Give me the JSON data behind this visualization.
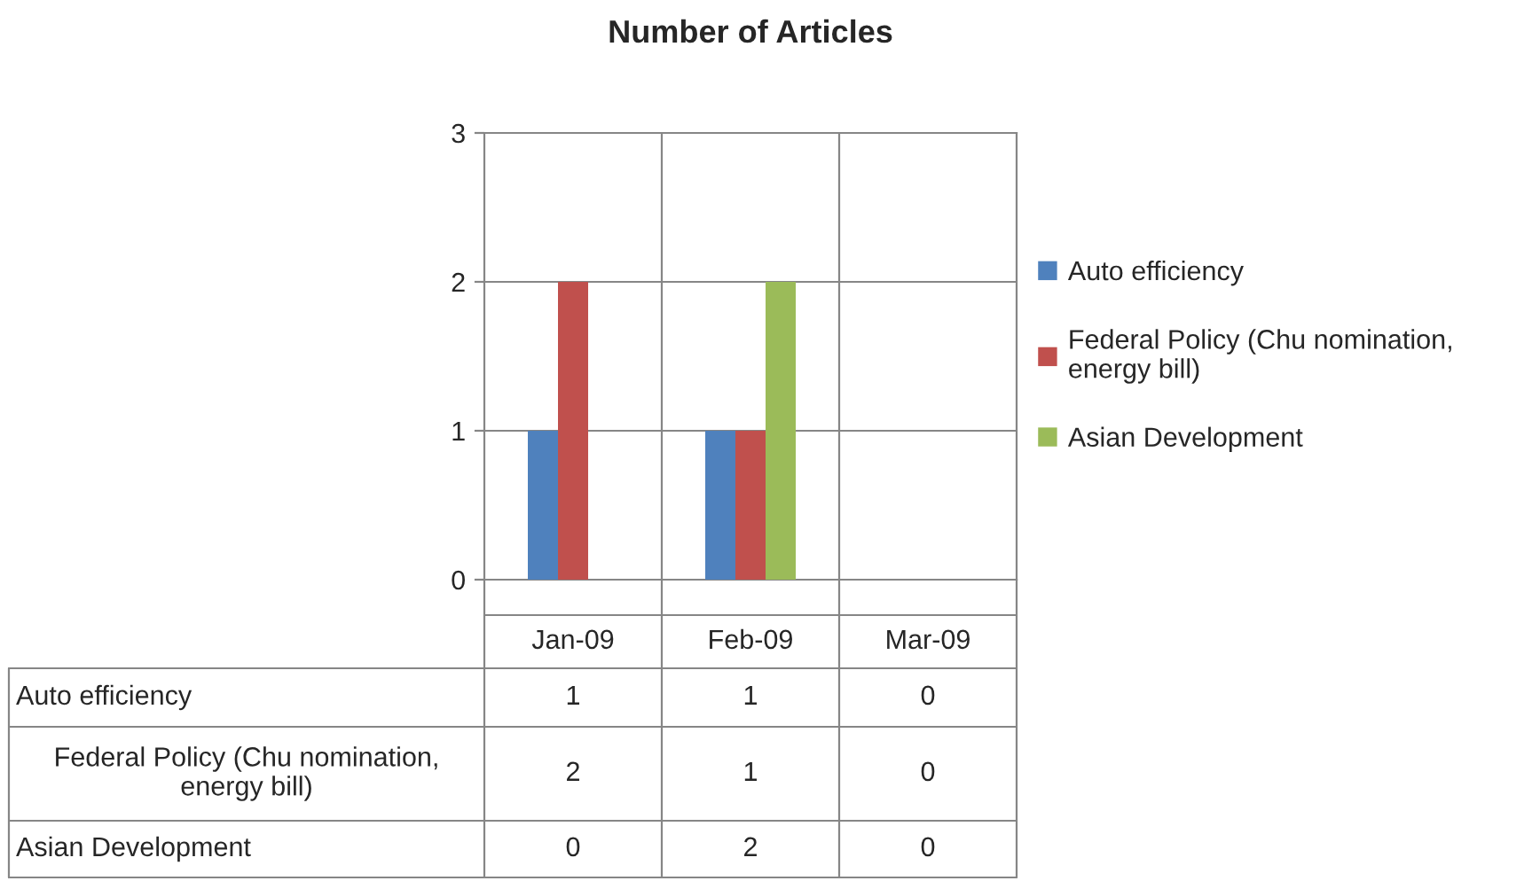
{
  "chart_data": {
    "type": "bar",
    "title": "Number of Articles",
    "categories": [
      "Jan-09",
      "Feb-09",
      "Mar-09"
    ],
    "series": [
      {
        "name": "Auto efficiency",
        "color": "#4f81bd",
        "values": [
          1,
          1,
          0
        ]
      },
      {
        "name": "Federal Policy (Chu nomination, energy bill)",
        "color": "#c0504d",
        "values": [
          2,
          1,
          0
        ]
      },
      {
        "name": "Asian Development",
        "color": "#9bbb59",
        "values": [
          0,
          2,
          0
        ]
      }
    ],
    "ylim": [
      0,
      3
    ],
    "yticks": [
      0,
      1,
      2,
      3
    ],
    "grid": "y",
    "legend": "right",
    "data_labels": true
  }
}
